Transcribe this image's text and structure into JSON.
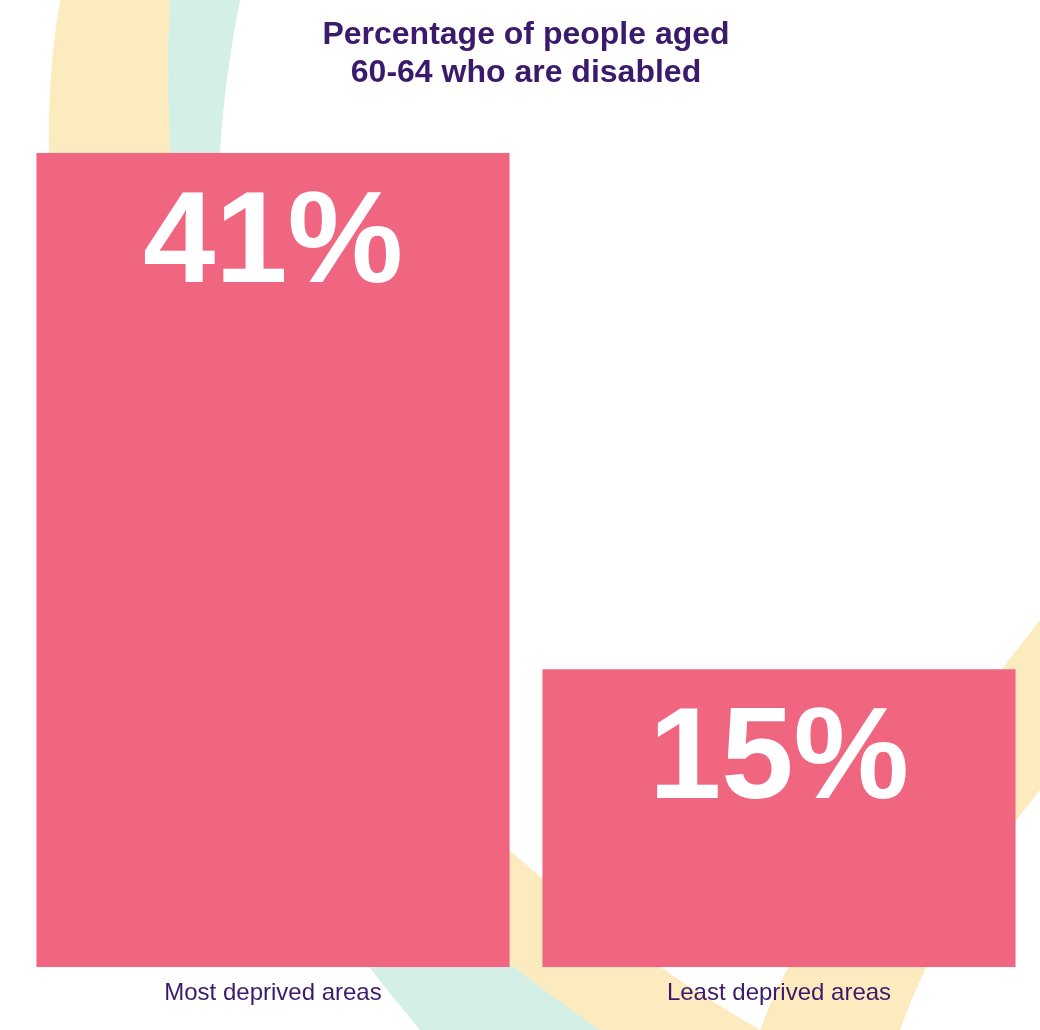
{
  "chart_data": {
    "type": "bar",
    "title": "Percentage of people aged 60-64 who are disabled",
    "categories": [
      "Most deprived areas",
      "Least deprived areas"
    ],
    "values": [
      41,
      15
    ],
    "value_labels": [
      "41%",
      "15%"
    ],
    "color": "#f06680",
    "ylim": [
      0,
      41
    ],
    "grid": false,
    "data_labels": true,
    "tick_labels": "x"
  }
}
